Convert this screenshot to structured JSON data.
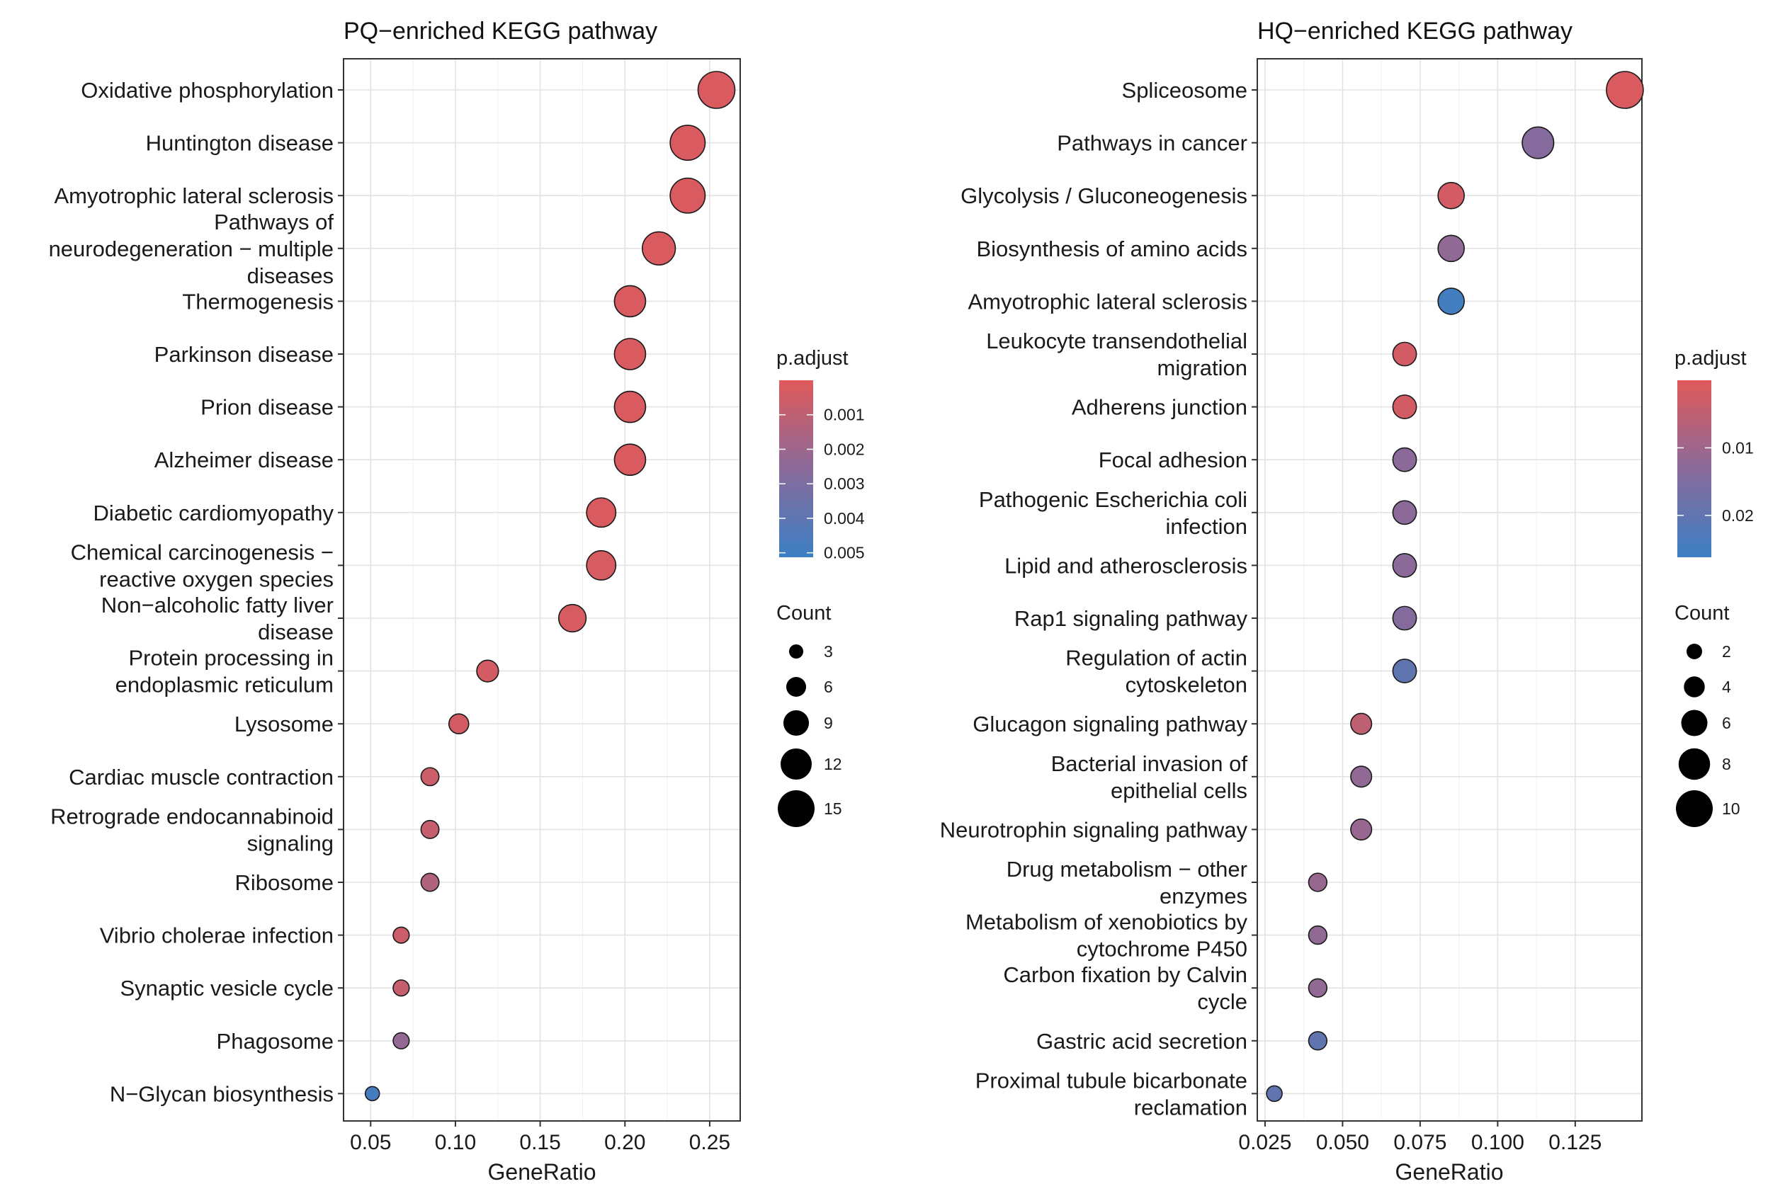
{
  "chart_data": [
    {
      "type": "scatter",
      "title": "PQ−enriched KEGG pathway",
      "xlabel": "GeneRatio",
      "ylabel": "",
      "xlim": [
        0.034,
        0.268
      ],
      "xticks": [
        "0.05",
        "0.10",
        "0.15",
        "0.20",
        "0.25"
      ],
      "xtick_values": [
        0.05,
        0.1,
        0.15,
        0.2,
        0.25
      ],
      "grid": true,
      "color_legend": {
        "title": "p.adjust",
        "ticks": [
          "0.001",
          "0.002",
          "0.003",
          "0.004",
          "0.005"
        ],
        "tick_values": [
          0.001,
          0.002,
          0.003,
          0.004,
          0.005
        ],
        "range": [
          0.0,
          0.00513
        ],
        "low_color": "#e05a5a",
        "high_color": "#3b7fc4"
      },
      "size_legend": {
        "title": "Count",
        "ticks": [
          "3",
          "6",
          "9",
          "12",
          "15"
        ],
        "values": [
          3,
          6,
          9,
          12,
          15
        ]
      },
      "categories": [
        "Oxidative phosphorylation",
        "Huntington disease",
        "Amyotrophic lateral sclerosis",
        "Pathways of neurodegeneration − multiple diseases",
        "Thermogenesis",
        "Parkinson disease",
        "Prion disease",
        "Alzheimer disease",
        "Diabetic cardiomyopathy",
        "Chemical carcinogenesis − reactive oxygen species",
        "Non−alcoholic fatty liver disease",
        "Protein processing in endoplasmic reticulum",
        "Lysosome",
        "Cardiac muscle contraction",
        "Retrograde endocannabinoid signaling",
        "Ribosome",
        "Vibrio cholerae infection",
        "Synaptic vesicle cycle",
        "Phagosome",
        "N−Glycan biosynthesis"
      ],
      "category_lines": [
        [
          "Oxidative phosphorylation"
        ],
        [
          "Huntington disease"
        ],
        [
          "Amyotrophic lateral sclerosis"
        ],
        [
          "Pathways of",
          "neurodegeneration − multiple",
          "diseases"
        ],
        [
          "Thermogenesis"
        ],
        [
          "Parkinson disease"
        ],
        [
          "Prion disease"
        ],
        [
          "Alzheimer disease"
        ],
        [
          "Diabetic cardiomyopathy"
        ],
        [
          "Chemical carcinogenesis −",
          "reactive oxygen species"
        ],
        [
          "Non−alcoholic fatty liver",
          "disease"
        ],
        [
          "Protein processing in",
          "endoplasmic reticulum"
        ],
        [
          "Lysosome"
        ],
        [
          "Cardiac muscle contraction"
        ],
        [
          "Retrograde endocannabinoid",
          "signaling"
        ],
        [
          "Ribosome"
        ],
        [
          "Vibrio cholerae infection"
        ],
        [
          "Synaptic vesicle cycle"
        ],
        [
          "Phagosome"
        ],
        [
          "N−Glycan biosynthesis"
        ]
      ],
      "gene_ratio": [
        0.254,
        0.237,
        0.237,
        0.22,
        0.203,
        0.203,
        0.203,
        0.203,
        0.186,
        0.186,
        0.169,
        0.119,
        0.102,
        0.085,
        0.085,
        0.085,
        0.068,
        0.068,
        0.068,
        0.051
      ],
      "count": [
        15,
        14,
        14,
        13,
        12,
        12,
        12,
        12,
        11,
        11,
        10,
        7,
        6,
        5,
        5,
        5,
        4,
        4,
        4,
        3
      ],
      "p_adjust": [
        0.0002,
        0.0002,
        0.0002,
        0.0002,
        0.0002,
        0.0002,
        0.0002,
        0.0002,
        0.0002,
        0.0003,
        0.0003,
        0.0004,
        0.0004,
        0.0006,
        0.0008,
        0.0014,
        0.0006,
        0.0008,
        0.0023,
        0.0048
      ]
    },
    {
      "type": "scatter",
      "title": "HQ−enriched KEGG pathway",
      "xlabel": "GeneRatio",
      "ylabel": "",
      "xlim": [
        0.0225,
        0.1465
      ],
      "xticks": [
        "0.025",
        "0.050",
        "0.075",
        "0.100",
        "0.125"
      ],
      "xtick_values": [
        0.025,
        0.05,
        0.075,
        0.1,
        0.125
      ],
      "grid": true,
      "color_legend": {
        "title": "p.adjust",
        "ticks": [
          "0.01",
          "0.02"
        ],
        "tick_values": [
          0.01,
          0.02
        ],
        "range": [
          0.0,
          0.0262
        ],
        "low_color": "#e05a5a",
        "high_color": "#3b7fc4"
      },
      "size_legend": {
        "title": "Count",
        "ticks": [
          "2",
          "4",
          "6",
          "8",
          "10"
        ],
        "values": [
          2,
          4,
          6,
          8,
          10
        ]
      },
      "categories": [
        "Spliceosome",
        "Pathways in cancer",
        "Glycolysis / Gluconeogenesis",
        "Biosynthesis of amino acids",
        "Amyotrophic lateral sclerosis",
        "Leukocyte transendothelial migration",
        "Adherens junction",
        "Focal adhesion",
        "Pathogenic Escherichia coli infection",
        "Lipid and atherosclerosis",
        "Rap1 signaling pathway",
        "Regulation of actin cytoskeleton",
        "Glucagon signaling pathway",
        "Bacterial invasion of epithelial cells",
        "Neurotrophin signaling pathway",
        "Drug metabolism − other enzymes",
        "Metabolism of xenobiotics by cytochrome P450",
        "Carbon fixation by Calvin cycle",
        "Gastric acid secretion",
        "Proximal tubule bicarbonate reclamation"
      ],
      "category_lines": [
        [
          "Spliceosome"
        ],
        [
          "Pathways in cancer"
        ],
        [
          "Glycolysis / Gluconeogenesis"
        ],
        [
          "Biosynthesis of amino acids"
        ],
        [
          "Amyotrophic lateral sclerosis"
        ],
        [
          "Leukocyte transendothelial",
          "migration"
        ],
        [
          "Adherens junction"
        ],
        [
          "Focal adhesion"
        ],
        [
          "Pathogenic Escherichia coli",
          "infection"
        ],
        [
          "Lipid and atherosclerosis"
        ],
        [
          "Rap1 signaling pathway"
        ],
        [
          "Regulation of actin",
          "cytoskeleton"
        ],
        [
          "Glucagon signaling pathway"
        ],
        [
          "Bacterial invasion of",
          "epithelial cells"
        ],
        [
          "Neurotrophin signaling pathway"
        ],
        [
          "Drug metabolism − other",
          "enzymes"
        ],
        [
          "Metabolism of xenobiotics by",
          "cytochrome P450"
        ],
        [
          "Carbon fixation by Calvin",
          "cycle"
        ],
        [
          "Gastric acid secretion"
        ],
        [
          "Proximal tubule bicarbonate",
          "reclamation"
        ]
      ],
      "gene_ratio": [
        0.141,
        0.113,
        0.085,
        0.085,
        0.085,
        0.07,
        0.07,
        0.07,
        0.07,
        0.07,
        0.07,
        0.07,
        0.056,
        0.056,
        0.056,
        0.042,
        0.042,
        0.042,
        0.042,
        0.028
      ],
      "count": [
        10,
        8,
        6,
        6,
        6,
        5,
        5,
        5,
        5,
        5,
        5,
        5,
        4,
        4,
        4,
        3,
        3,
        3,
        3,
        2
      ],
      "p_adjust": [
        0.001,
        0.014,
        0.002,
        0.012,
        0.025,
        0.002,
        0.002,
        0.013,
        0.013,
        0.013,
        0.014,
        0.02,
        0.005,
        0.012,
        0.011,
        0.011,
        0.012,
        0.012,
        0.02,
        0.02
      ]
    }
  ]
}
